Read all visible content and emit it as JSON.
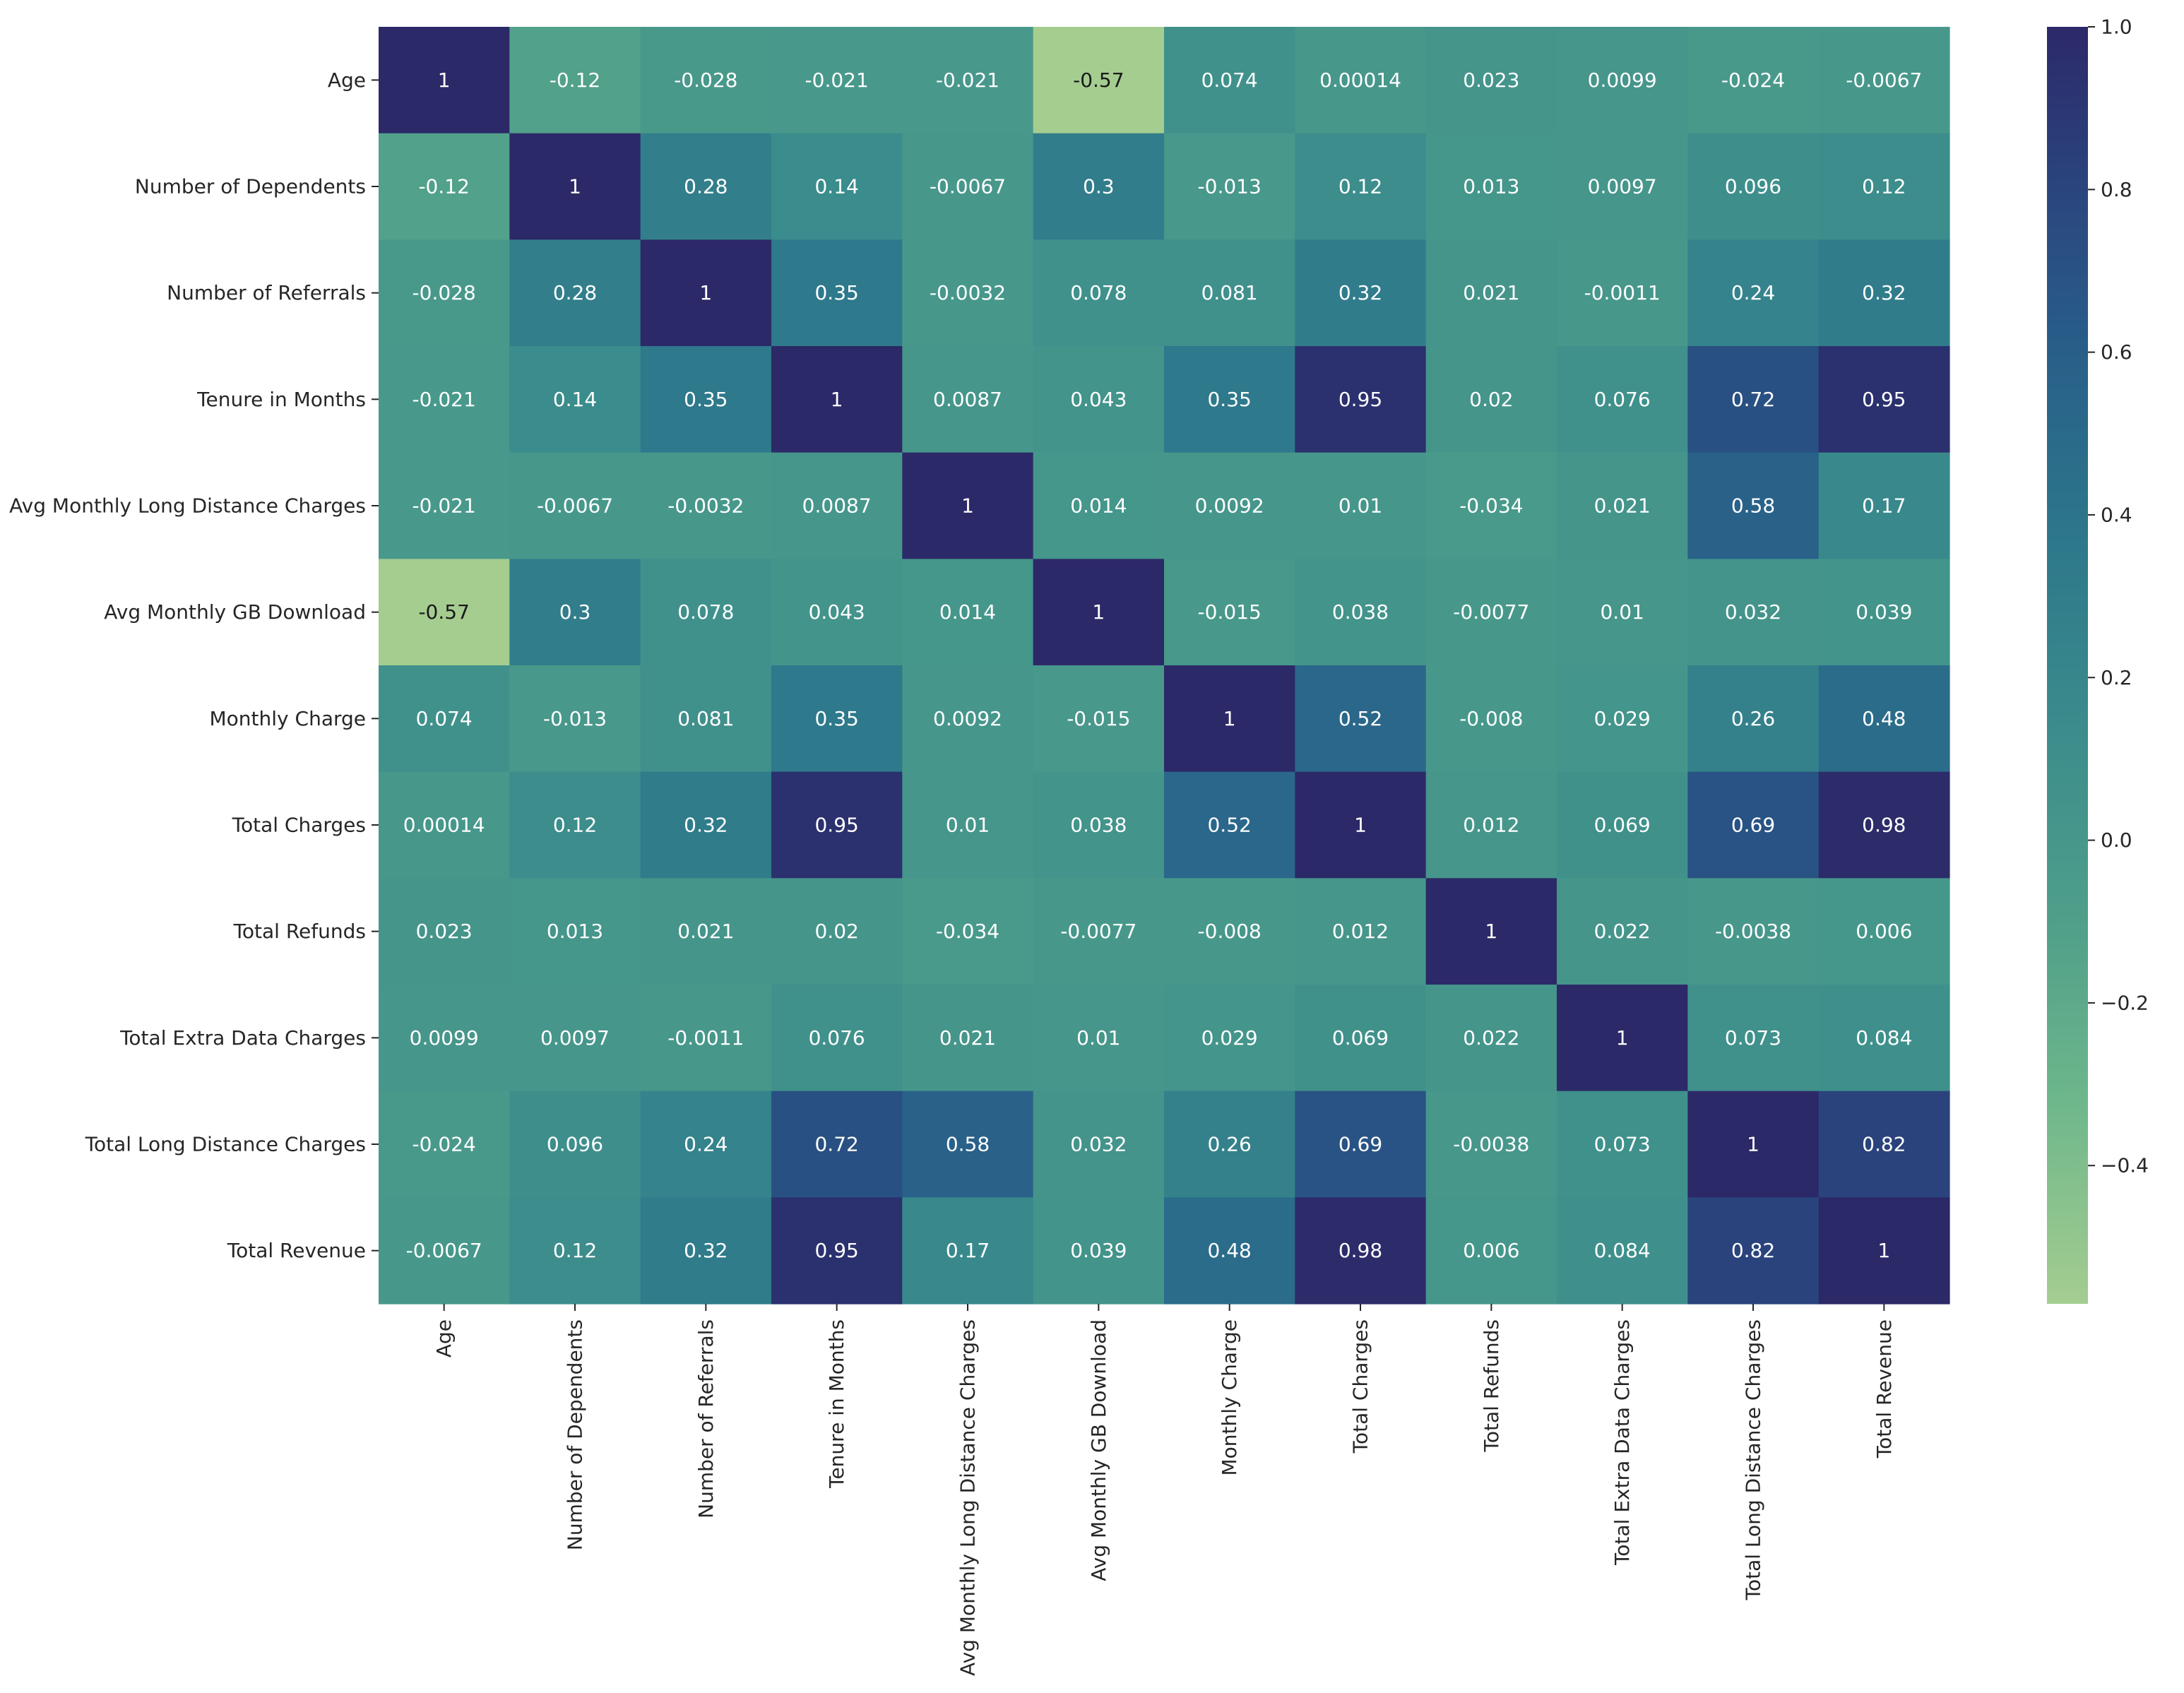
{
  "chart_data": {
    "type": "heatmap",
    "title": "",
    "xlabel": "",
    "ylabel": "",
    "colormap": "crest",
    "vmin": -0.57,
    "vmax": 1.0,
    "labels": [
      "Age",
      "Number of Dependents",
      "Number of Referrals",
      "Tenure in Months",
      "Avg Monthly Long Distance Charges",
      "Avg Monthly GB Download",
      "Monthly Charge",
      "Total Charges",
      "Total Refunds",
      "Total Extra Data Charges",
      "Total Long Distance Charges",
      "Total Revenue"
    ],
    "matrix": [
      [
        "1",
        "-0.12",
        "-0.028",
        "-0.021",
        "-0.021",
        "-0.57",
        "0.074",
        "0.00014",
        "0.023",
        "0.0099",
        "-0.024",
        "-0.0067"
      ],
      [
        "-0.12",
        "1",
        "0.28",
        "0.14",
        "-0.0067",
        "0.3",
        "-0.013",
        "0.12",
        "0.013",
        "0.0097",
        "0.096",
        "0.12"
      ],
      [
        "-0.028",
        "0.28",
        "1",
        "0.35",
        "-0.0032",
        "0.078",
        "0.081",
        "0.32",
        "0.021",
        "-0.0011",
        "0.24",
        "0.32"
      ],
      [
        "-0.021",
        "0.14",
        "0.35",
        "1",
        "0.0087",
        "0.043",
        "0.35",
        "0.95",
        "0.02",
        "0.076",
        "0.72",
        "0.95"
      ],
      [
        "-0.021",
        "-0.0067",
        "-0.0032",
        "0.0087",
        "1",
        "0.014",
        "0.0092",
        "0.01",
        "-0.034",
        "0.021",
        "0.58",
        "0.17"
      ],
      [
        "-0.57",
        "0.3",
        "0.078",
        "0.043",
        "0.014",
        "1",
        "-0.015",
        "0.038",
        "-0.0077",
        "0.01",
        "0.032",
        "0.039"
      ],
      [
        "0.074",
        "-0.013",
        "0.081",
        "0.35",
        "0.0092",
        "-0.015",
        "1",
        "0.52",
        "-0.008",
        "0.029",
        "0.26",
        "0.48"
      ],
      [
        "0.00014",
        "0.12",
        "0.32",
        "0.95",
        "0.01",
        "0.038",
        "0.52",
        "1",
        "0.012",
        "0.069",
        "0.69",
        "0.98"
      ],
      [
        "0.023",
        "0.013",
        "0.021",
        "0.02",
        "-0.034",
        "-0.0077",
        "-0.008",
        "0.012",
        "1",
        "0.022",
        "-0.0038",
        "0.006"
      ],
      [
        "0.0099",
        "0.0097",
        "-0.0011",
        "0.076",
        "0.021",
        "0.01",
        "0.029",
        "0.069",
        "0.022",
        "1",
        "0.073",
        "0.084"
      ],
      [
        "-0.024",
        "0.096",
        "0.24",
        "0.72",
        "0.58",
        "0.032",
        "0.26",
        "0.69",
        "-0.0038",
        "0.073",
        "1",
        "0.82"
      ],
      [
        "-0.0067",
        "0.12",
        "0.32",
        "0.95",
        "0.17",
        "0.039",
        "0.48",
        "0.98",
        "0.006",
        "0.084",
        "0.82",
        "1"
      ]
    ],
    "colorbar": {
      "ticks": [
        1.0,
        0.8,
        0.6,
        0.4,
        0.2,
        0.0,
        -0.2,
        -0.4
      ],
      "tick_labels": [
        "1.0",
        "0.8",
        "0.6",
        "0.4",
        "0.2",
        "0.0",
        "−0.2",
        "−0.4"
      ]
    }
  }
}
